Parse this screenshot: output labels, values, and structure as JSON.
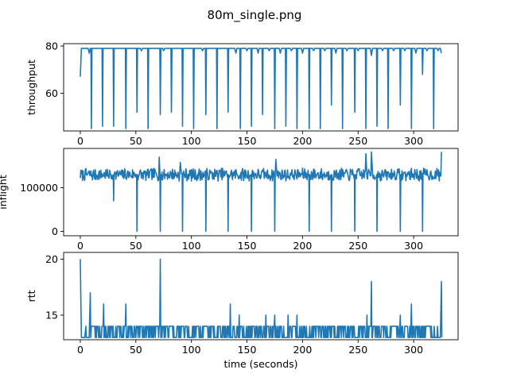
{
  "figure": {
    "title": "80m_single.png",
    "line_color": "#1f77b4"
  },
  "chart_data": [
    {
      "type": "line",
      "ylabel": "throughput",
      "xlabel": "",
      "xlim": [
        -15,
        340
      ],
      "ylim": [
        44,
        81
      ],
      "xticks": [
        0,
        50,
        100,
        150,
        200,
        250,
        300
      ],
      "yticks": [
        60,
        80
      ],
      "baseline": 79,
      "start": [
        [
          0,
          67
        ],
        [
          1,
          79
        ]
      ],
      "end": [
        [
          324,
          79
        ],
        [
          325,
          77
        ]
      ],
      "dips": [
        [
          10,
          45
        ],
        [
          20,
          46
        ],
        [
          30,
          46
        ],
        [
          41,
          45
        ],
        [
          51,
          52
        ],
        [
          61,
          45
        ],
        [
          72,
          51
        ],
        [
          82,
          52
        ],
        [
          92,
          46
        ],
        [
          102,
          45
        ],
        [
          113,
          51
        ],
        [
          123,
          45
        ],
        [
          133,
          52
        ],
        [
          144,
          45
        ],
        [
          154,
          46
        ],
        [
          164,
          51
        ],
        [
          175,
          45
        ],
        [
          185,
          46
        ],
        [
          195,
          45
        ],
        [
          206,
          45
        ],
        [
          216,
          45
        ],
        [
          226,
          55
        ],
        [
          236,
          45
        ],
        [
          247,
          52
        ],
        [
          257,
          45
        ],
        [
          267,
          46
        ],
        [
          277,
          45
        ],
        [
          288,
          55
        ],
        [
          298,
          45
        ],
        [
          308,
          68
        ],
        [
          318,
          45
        ]
      ],
      "wiggles": [
        [
          8,
          77
        ],
        [
          55,
          78
        ],
        [
          75,
          78
        ],
        [
          110,
          78
        ],
        [
          140,
          77
        ],
        [
          150,
          78
        ],
        [
          160,
          77
        ],
        [
          170,
          78
        ],
        [
          180,
          77
        ],
        [
          190,
          78
        ],
        [
          200,
          77
        ],
        [
          210,
          78
        ],
        [
          220,
          78
        ],
        [
          230,
          77
        ],
        [
          240,
          78
        ],
        [
          250,
          78
        ],
        [
          262,
          76
        ],
        [
          272,
          78
        ],
        [
          282,
          78
        ],
        [
          292,
          78
        ],
        [
          302,
          77
        ],
        [
          312,
          78
        ],
        [
          322,
          78
        ]
      ]
    },
    {
      "type": "line",
      "ylabel": "inflight",
      "xlabel": "",
      "xlim": [
        -15,
        340
      ],
      "ylim": [
        -10000,
        190000
      ],
      "xticks": [
        0,
        50,
        100,
        150,
        200,
        250,
        300
      ],
      "yticks": [
        0,
        100000
      ],
      "noise_mean": 130000,
      "noise_amp": 15000,
      "step": 1,
      "dips": [
        [
          30,
          70000
        ],
        [
          51,
          0
        ],
        [
          72,
          0
        ],
        [
          92,
          0
        ],
        [
          113,
          0
        ],
        [
          133,
          0
        ],
        [
          154,
          0
        ],
        [
          175,
          0
        ],
        [
          206,
          0
        ],
        [
          226,
          0
        ],
        [
          247,
          0
        ],
        [
          267,
          0
        ],
        [
          288,
          0
        ],
        [
          308,
          0
        ]
      ],
      "peaks": [
        [
          71,
          170000
        ],
        [
          90,
          158000
        ],
        [
          176,
          165000
        ],
        [
          257,
          178000
        ],
        [
          262,
          182000
        ],
        [
          325,
          182000
        ]
      ]
    },
    {
      "type": "line",
      "ylabel": "rtt",
      "xlabel": "time (seconds)",
      "xlim": [
        -15,
        340
      ],
      "ylim": [
        12.8,
        20.6
      ],
      "xticks": [
        0,
        50,
        100,
        150,
        200,
        250,
        300
      ],
      "yticks": [
        15,
        20
      ],
      "low": 13,
      "high": 14,
      "spikes": [
        [
          0,
          20
        ],
        [
          5,
          14
        ],
        [
          9,
          17
        ],
        [
          21,
          16
        ],
        [
          41,
          16
        ],
        [
          72,
          20
        ],
        [
          135,
          16
        ],
        [
          143,
          15
        ],
        [
          167,
          15
        ],
        [
          175,
          15
        ],
        [
          187,
          15
        ],
        [
          195,
          15
        ],
        [
          251,
          14
        ],
        [
          258,
          15
        ],
        [
          262,
          18
        ],
        [
          288,
          15
        ],
        [
          298,
          16
        ],
        [
          325,
          18
        ]
      ]
    }
  ]
}
